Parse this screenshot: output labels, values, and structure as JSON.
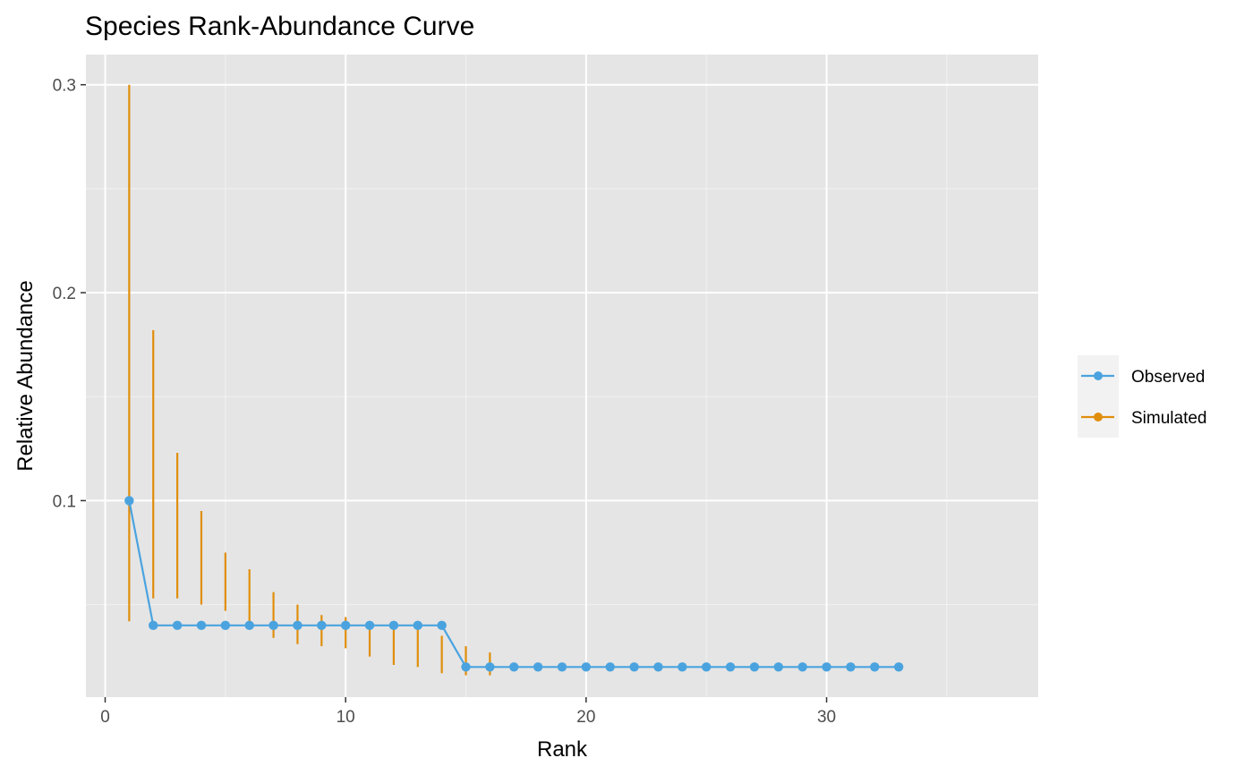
{
  "chart_data": {
    "type": "line",
    "title": "Species Rank-Abundance Curve",
    "xlabel": "Rank",
    "ylabel": "Relative Abundance",
    "xlim": [
      -0.8,
      38.8
    ],
    "ylim": [
      0.0055,
      0.3145
    ],
    "x_ticks": [
      0,
      10,
      20,
      30
    ],
    "x_tick_labels": [
      "0",
      "10",
      "20",
      "30"
    ],
    "x_minor_ticks": [
      5,
      15,
      25,
      35
    ],
    "y_ticks": [
      0.1,
      0.2,
      0.3
    ],
    "y_tick_labels": [
      "0.1",
      "0.2",
      "0.3"
    ],
    "y_minor_ticks": [
      0.05,
      0.15,
      0.25
    ],
    "grid": true,
    "legend_position": "right",
    "series": [
      {
        "name": "Observed",
        "color": "#4aa3df",
        "x": [
          1,
          2,
          3,
          4,
          5,
          6,
          7,
          8,
          9,
          10,
          11,
          12,
          13,
          14,
          15,
          16,
          17,
          18,
          19,
          20,
          21,
          22,
          23,
          24,
          25,
          26,
          27,
          28,
          29,
          30,
          31,
          32,
          33
        ],
        "y": [
          0.1,
          0.04,
          0.04,
          0.04,
          0.04,
          0.04,
          0.04,
          0.04,
          0.04,
          0.04,
          0.04,
          0.04,
          0.04,
          0.04,
          0.02,
          0.02,
          0.02,
          0.02,
          0.02,
          0.02,
          0.02,
          0.02,
          0.02,
          0.02,
          0.02,
          0.02,
          0.02,
          0.02,
          0.02,
          0.02,
          0.02,
          0.02,
          0.02
        ]
      },
      {
        "name": "Simulated",
        "color": "#e08e0b",
        "x": [
          1,
          2,
          3,
          4,
          5,
          6,
          7,
          8,
          9,
          10,
          11,
          12,
          13,
          14,
          15,
          16,
          17
        ],
        "low": [
          0.042,
          0.053,
          0.053,
          0.05,
          0.047,
          0.039,
          0.034,
          0.031,
          0.03,
          0.029,
          0.025,
          0.021,
          0.02,
          0.017,
          0.016,
          0.016,
          0.018
        ],
        "high": [
          0.3,
          0.182,
          0.123,
          0.095,
          0.075,
          0.067,
          0.056,
          0.05,
          0.045,
          0.044,
          0.042,
          0.042,
          0.042,
          0.035,
          0.03,
          0.027,
          0.022
        ]
      }
    ]
  }
}
